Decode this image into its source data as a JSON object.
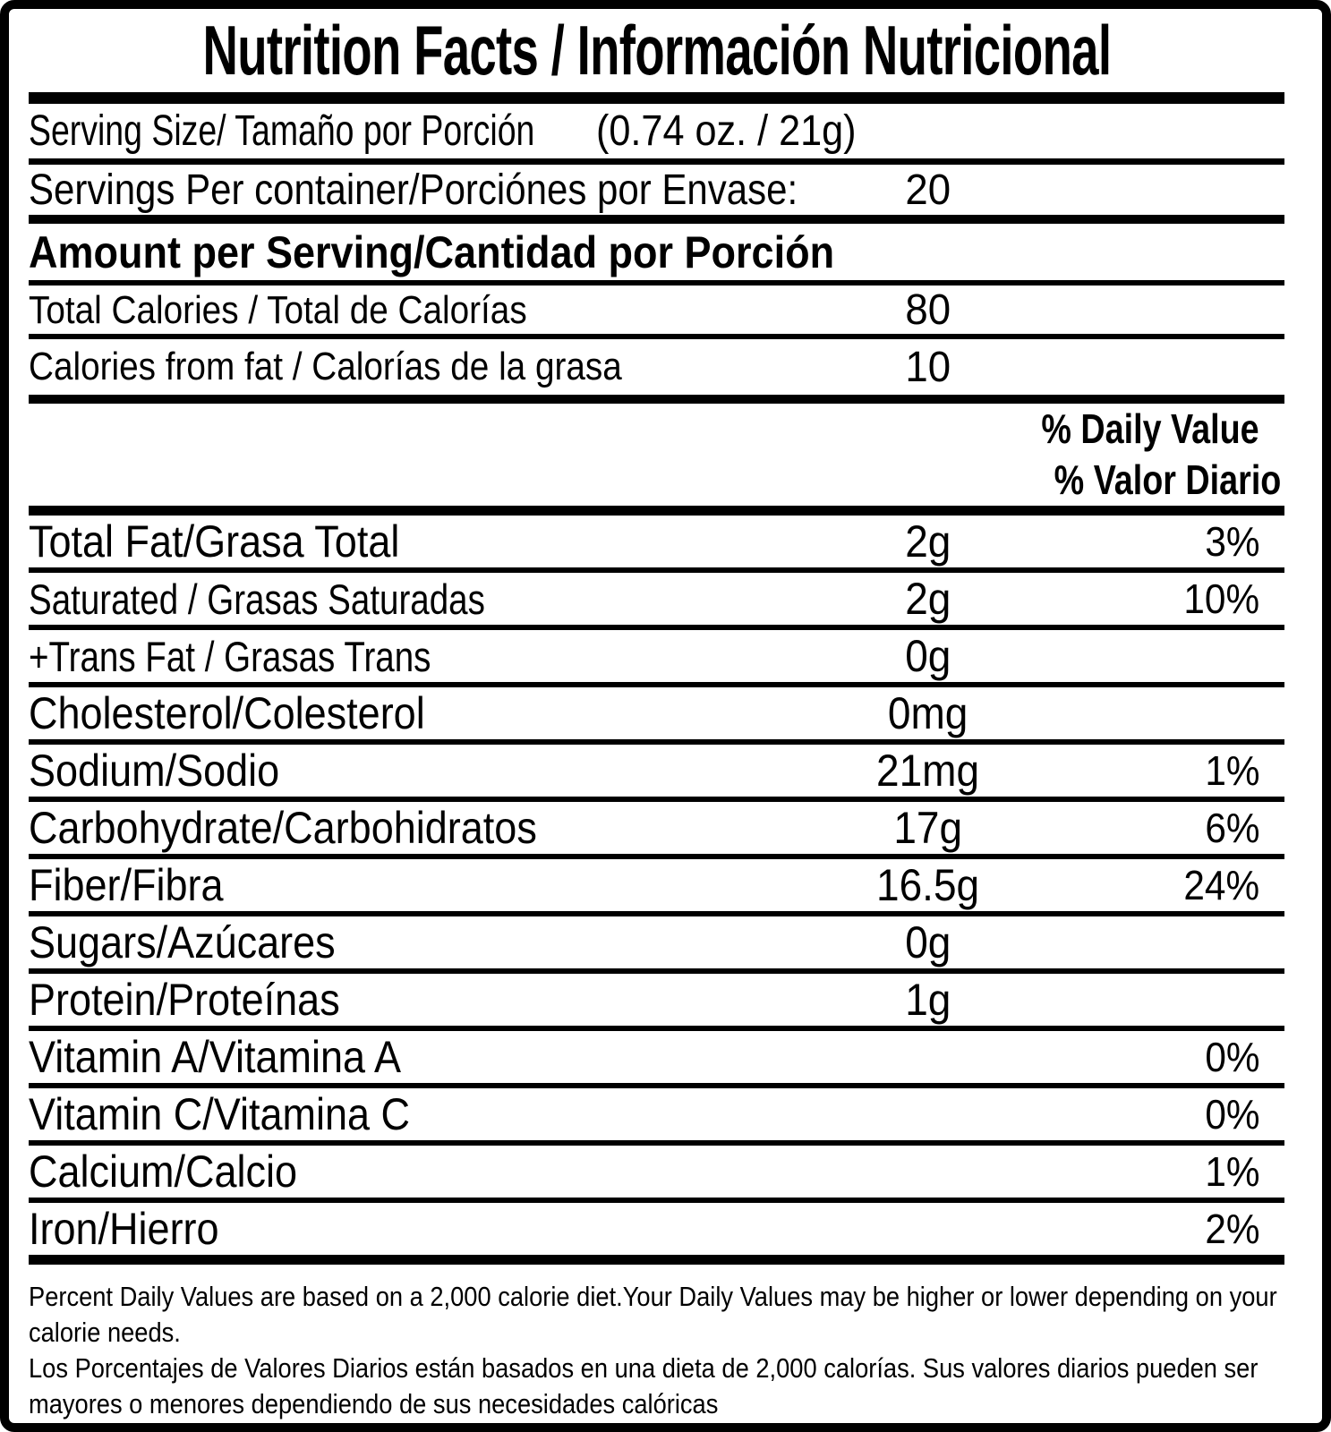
{
  "title": "Nutrition Facts / Información Nutricional",
  "serving": {
    "size_label": "Serving Size/ Tamaño por Porción",
    "size_value": "(0.74 oz. / 21g)",
    "per_container_label": "Servings Per container/Porciónes por Envase:",
    "per_container_value": "20"
  },
  "amount_header": "Amount per Serving/Cantidad por Porción",
  "calories": [
    {
      "label": "Total Calories / Total de Calorías",
      "value": "80"
    },
    {
      "label": "Calories from fat / Calorías de la grasa",
      "value": "10"
    }
  ],
  "daily_value_header": {
    "en": "% Daily Value",
    "es": "% Valor Diario"
  },
  "nutrients": [
    {
      "label": "Total Fat/Grasa Total",
      "value": "2g",
      "pct": "3%"
    },
    {
      "label": "Saturated / Grasas Saturadas",
      "value": "2g",
      "pct": "10%"
    },
    {
      "label": "+Trans Fat / Grasas Trans",
      "value": "0g",
      "pct": ""
    },
    {
      "label": "Cholesterol/Colesterol",
      "value": "0mg",
      "pct": ""
    },
    {
      "label": "Sodium/Sodio",
      "value": "21mg",
      "pct": "1%"
    },
    {
      "label": "Carbohydrate/Carbohidratos",
      "value": "17g",
      "pct": "6%"
    },
    {
      "label": "Fiber/Fibra",
      "value": "16.5g",
      "pct": "24%"
    },
    {
      "label": "Sugars/Azúcares",
      "value": "0g",
      "pct": ""
    },
    {
      "label": "Protein/Proteínas",
      "value": "1g",
      "pct": ""
    },
    {
      "label": "Vitamin A/Vitamina A",
      "value": "",
      "pct": "0%"
    },
    {
      "label": "Vitamin C/Vitamina C",
      "value": "",
      "pct": "0%"
    },
    {
      "label": "Calcium/Calcio",
      "value": "",
      "pct": "1%"
    },
    {
      "label": "Iron/Hierro",
      "value": "",
      "pct": "2%"
    }
  ],
  "footnote": {
    "lines": [
      "Percent Daily Values are based on a 2,000 calorie diet.Your Daily Values may be higher or lower depending on your",
      "calorie needs.",
      "Los Porcentajes de Valores Diarios están basados en una dieta de 2,000 calorías. Sus valores diarios pueden ser",
      "mayores o menores dependiendo de sus necesidades calóricas"
    ]
  },
  "colors": {
    "ink": "#000000",
    "paper": "#ffffff"
  }
}
